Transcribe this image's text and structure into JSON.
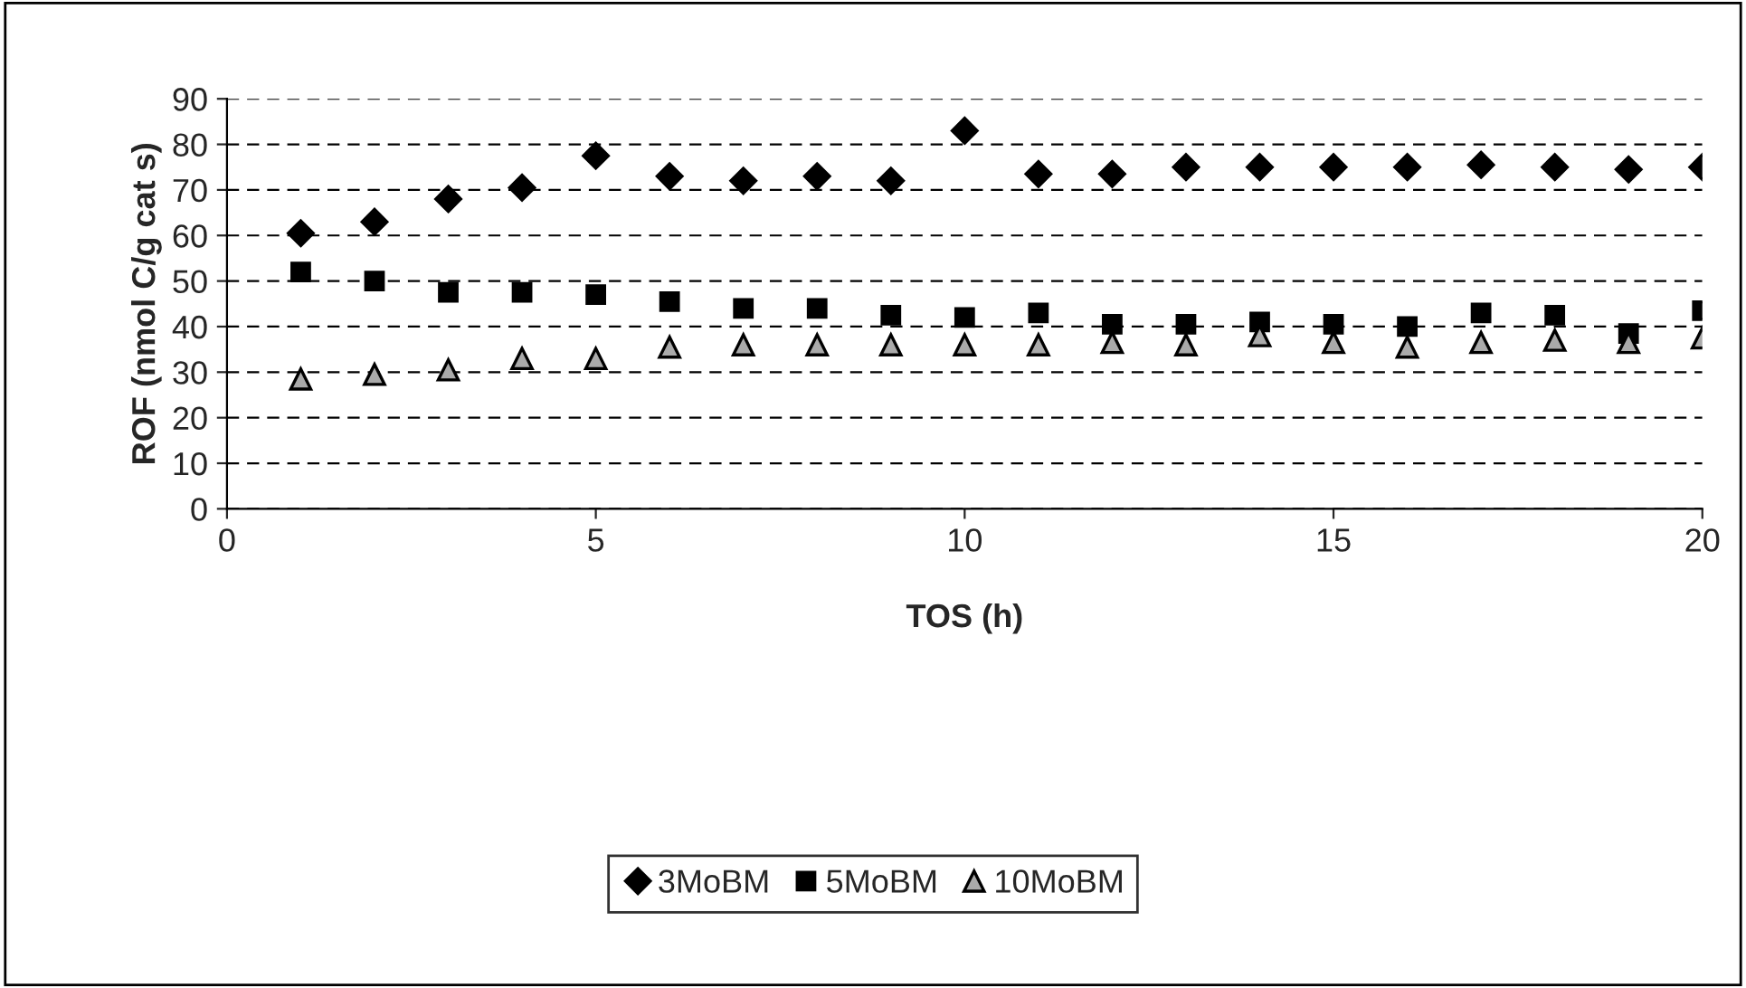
{
  "chart_data": {
    "type": "scatter",
    "xlabel": "TOS (h)",
    "ylabel": "ROF (nmol C/g cat s)",
    "x": [
      1,
      2,
      3,
      4,
      5,
      6,
      7,
      8,
      9,
      10,
      11,
      12,
      13,
      14,
      15,
      16,
      17,
      18,
      19,
      20
    ],
    "series": [
      {
        "name": "3MoBM",
        "color": "#000000",
        "marker": "diamond",
        "values": [
          60.5,
          63,
          68,
          70.5,
          77.5,
          73,
          72,
          73,
          72,
          83,
          73.5,
          73.5,
          75,
          75,
          75,
          75,
          75.5,
          75,
          74.5,
          75
        ]
      },
      {
        "name": "5MoBM",
        "color": "#000000",
        "marker": "square",
        "values": [
          52,
          50,
          47.5,
          47.5,
          47,
          45.5,
          44,
          44,
          42.5,
          42,
          43,
          40.5,
          40.5,
          41,
          40.5,
          40,
          43,
          42.5,
          38.5,
          43.5
        ]
      },
      {
        "name": "10MoBM",
        "color": "#000000",
        "marker": "triangle",
        "values": [
          28.5,
          29.5,
          30.5,
          33,
          33,
          35.5,
          36,
          36,
          36,
          36,
          36,
          36.5,
          36,
          38,
          36.5,
          35.5,
          36.5,
          37,
          36.5,
          37.5
        ]
      }
    ],
    "xlim": [
      0,
      20
    ],
    "xticks": [
      0,
      5,
      10,
      15,
      20
    ],
    "ylim": [
      0,
      90
    ],
    "yticks": [
      0,
      10,
      20,
      30,
      40,
      50,
      60,
      70,
      80,
      90
    ],
    "grid": "y",
    "legend": "bottom"
  }
}
